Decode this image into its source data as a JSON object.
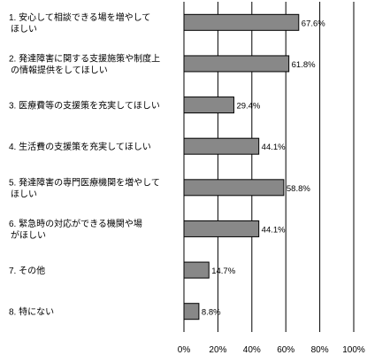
{
  "chart_data": {
    "type": "bar",
    "orientation": "horizontal",
    "categories": [
      [
        "1. 安心して相談できる場を増やして",
        "ほしい"
      ],
      [
        "2. 発達障害に関する支援施策や制度上",
        "の情報提供をしてほしい"
      ],
      [
        "3. 医療費等の支援策を充実してほしい"
      ],
      [
        "4. 生活費の支援策を充実してほしい"
      ],
      [
        "5. 発達障害の専門医療機関を増やして",
        "ほしい"
      ],
      [
        "6. 緊急時の対応ができる機関や場",
        "がほしい"
      ],
      [
        "7. その他"
      ],
      [
        "8. 特にない"
      ]
    ],
    "values": [
      67.6,
      61.8,
      29.4,
      44.1,
      58.8,
      44.1,
      14.7,
      8.8
    ],
    "data_labels": [
      "67.6%",
      "61.8%",
      "29.4%",
      "44.1%",
      "58.8%",
      "44.1%",
      "14.7%",
      "8.8%"
    ],
    "xlim": [
      0,
      100
    ],
    "xticks": [
      "0%",
      "20%",
      "40%",
      "60%",
      "80%",
      "100%"
    ],
    "tick_values": [
      0,
      20,
      40,
      60,
      80,
      100
    ],
    "grid": "vertical-at-ticks",
    "legend": "none",
    "bar_color": "#888888",
    "bar_border": "#000000",
    "title": "",
    "xlabel": "",
    "ylabel": ""
  }
}
